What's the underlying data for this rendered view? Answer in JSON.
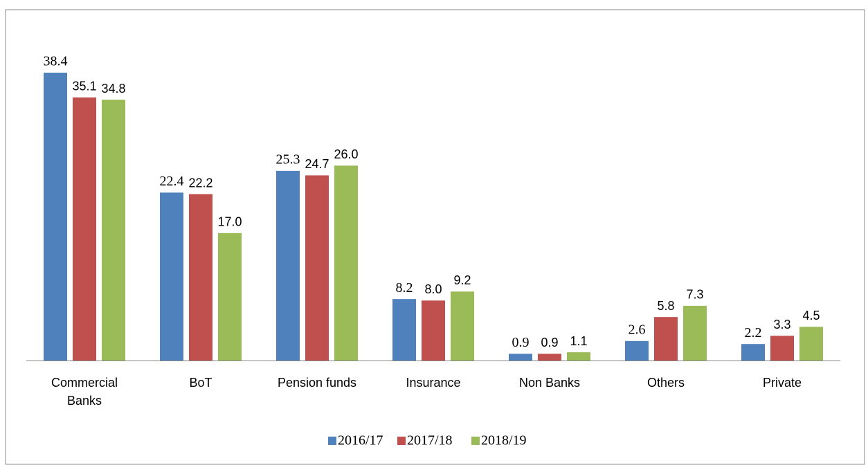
{
  "chart_data": {
    "type": "bar",
    "categories": [
      "Commercial Banks",
      "BoT",
      "Pension funds",
      "Insurance",
      "Non Banks",
      "Others",
      "Private"
    ],
    "series": [
      {
        "name": "2016/17",
        "color": "#4f81bd",
        "values": [
          38.4,
          22.4,
          25.3,
          8.2,
          0.9,
          2.6,
          2.2
        ],
        "value_labels": [
          "38.4",
          "22.4",
          "25.3",
          "8.2",
          "0.9",
          "2.6",
          "2.2"
        ]
      },
      {
        "name": "2017/18",
        "color": "#c0504d",
        "values": [
          35.1,
          22.2,
          24.7,
          8.0,
          0.9,
          5.8,
          3.3
        ],
        "value_labels": [
          "35.1",
          "22.2",
          "24.7",
          "8.0",
          "0.9",
          "5.8",
          "3.3"
        ]
      },
      {
        "name": "2018/19",
        "color": "#9bbb59",
        "values": [
          34.8,
          17.0,
          26.0,
          9.2,
          1.1,
          7.3,
          4.5
        ],
        "value_labels": [
          "34.8",
          "17.0",
          "26.0",
          "9.2",
          "1.1",
          "7.3",
          "4.5"
        ]
      }
    ],
    "legend": "bottom"
  }
}
